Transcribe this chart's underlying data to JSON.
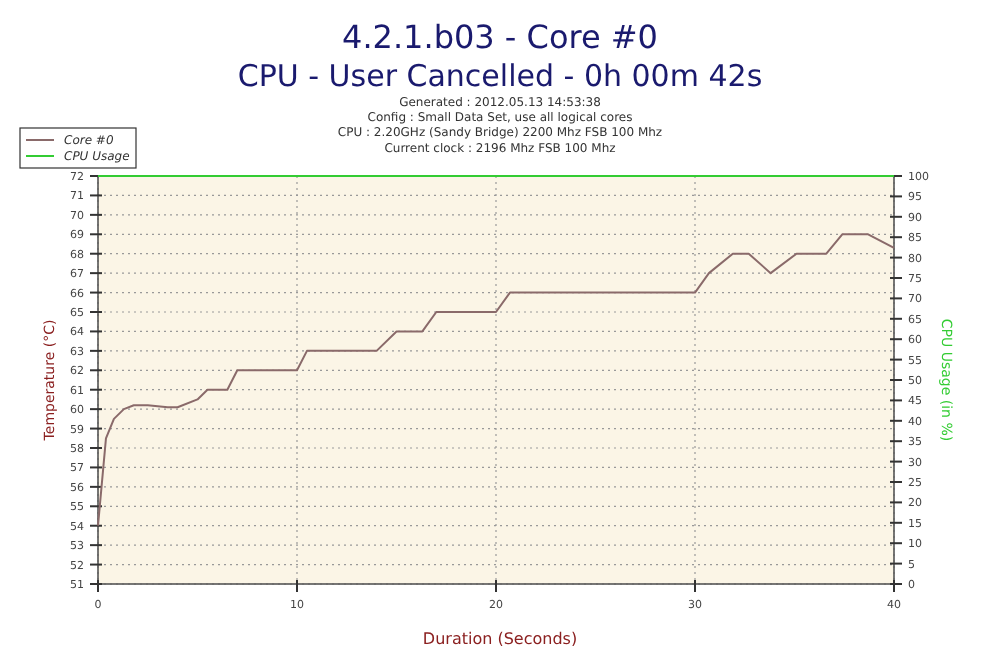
{
  "chart_data": {
    "type": "line",
    "title": "4.2.1.b03 - Core #0",
    "subtitle": "CPU - User Cancelled - 0h 00m 42s",
    "annotations": [
      "Generated : 2012.05.13 14:53:38",
      "Config : Small Data Set, use all logical cores",
      "CPU : 2.20GHz (Sandy Bridge) 2200 Mhz FSB 100 Mhz",
      "Current clock : 2196 Mhz FSB 100 Mhz"
    ],
    "xlabel": "Duration (Seconds)",
    "ylabel": "Temperature (°C)",
    "y2label": "CPU Usage (in %)",
    "series": [
      {
        "name": "Core #0",
        "color": "#8a6a6a",
        "x": [
          0,
          0.4,
          0.8,
          1.3,
          1.8,
          2.5,
          3.5,
          4,
          5,
          5.5,
          6,
          6.5,
          7,
          10,
          10.5,
          11,
          14,
          15,
          15.5,
          16.3,
          17,
          20,
          20.7,
          30,
          30.7,
          31.9,
          32.7,
          33.8,
          35.1,
          36.6,
          37.4,
          38.7,
          40
        ],
        "values": [
          54,
          58.5,
          59.5,
          60,
          60.2,
          60.2,
          60.1,
          60.1,
          60.5,
          61,
          61,
          61,
          62,
          62,
          63,
          63,
          63,
          64,
          64,
          64,
          65,
          65,
          66,
          66,
          67,
          68,
          68,
          67,
          68,
          68,
          69,
          69,
          68.3
        ]
      },
      {
        "name": "CPU Usage",
        "color": "#33cc33",
        "axis": "y2",
        "x": [
          0,
          40
        ],
        "values": [
          100,
          100
        ]
      }
    ],
    "xlim": [
      0,
      40
    ],
    "xticks": [
      0,
      10,
      20,
      30,
      40
    ],
    "ylim": [
      51,
      72
    ],
    "yticks": [
      51,
      52,
      53,
      54,
      55,
      56,
      57,
      58,
      59,
      60,
      61,
      62,
      63,
      64,
      65,
      66,
      67,
      68,
      69,
      70,
      71,
      72
    ],
    "y2lim": [
      0,
      100
    ],
    "y2ticks": [
      0,
      5,
      10,
      15,
      20,
      25,
      30,
      35,
      40,
      45,
      50,
      55,
      60,
      65,
      70,
      75,
      80,
      85,
      90,
      95,
      100
    ],
    "grid": true,
    "legend": "top left"
  }
}
